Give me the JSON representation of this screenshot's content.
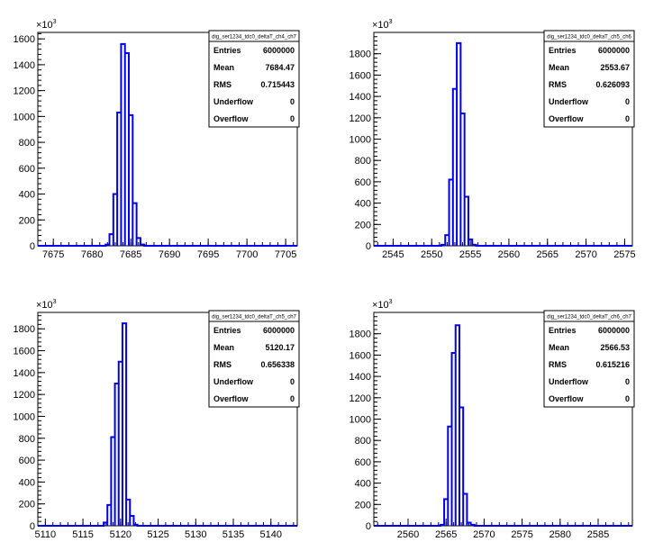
{
  "chart_data": [
    {
      "type": "histogram",
      "title": "dig_ser1234_tdc0_deltaT_ch4_ch7",
      "xlim": [
        7673,
        7706.5
      ],
      "ylim": [
        0,
        1650
      ],
      "x_ticks": [
        7675,
        7680,
        7685,
        7690,
        7695,
        7700,
        7705
      ],
      "y_ticks": [
        0,
        200,
        400,
        600,
        800,
        1000,
        1200,
        1400,
        1600
      ],
      "y_tick_labels": [
        "0",
        "200",
        "400",
        "600",
        "800",
        "1000",
        "1200",
        "1400",
        "1600"
      ],
      "y_exponent": "10",
      "y_exponent_power": "3",
      "bin_width": 0.5,
      "bins": [
        {
          "x": 7682.0,
          "y": 10
        },
        {
          "x": 7682.5,
          "y": 90
        },
        {
          "x": 7683.0,
          "y": 400
        },
        {
          "x": 7683.5,
          "y": 1030
        },
        {
          "x": 7684.0,
          "y": 1560
        },
        {
          "x": 7684.5,
          "y": 1490
        },
        {
          "x": 7685.0,
          "y": 1010
        },
        {
          "x": 7685.5,
          "y": 330
        },
        {
          "x": 7686.0,
          "y": 60
        },
        {
          "x": 7686.5,
          "y": 10
        }
      ],
      "stats": [
        {
          "key": "Entries",
          "value": "6000000"
        },
        {
          "key": "Mean",
          "value": "7684.47"
        },
        {
          "key": "RMS",
          "value": "0.715443"
        },
        {
          "key": "Underflow",
          "value": "0"
        },
        {
          "key": "Overflow",
          "value": "0"
        }
      ]
    },
    {
      "type": "histogram",
      "title": "dig_ser1234_tdc0_deltaT_ch5_ch6",
      "xlim": [
        2542.5,
        2576
      ],
      "ylim": [
        0,
        2000
      ],
      "x_ticks": [
        2545,
        2550,
        2555,
        2560,
        2565,
        2570,
        2575
      ],
      "y_ticks": [
        0,
        200,
        400,
        600,
        800,
        1000,
        1200,
        1400,
        1600,
        1800
      ],
      "y_tick_labels": [
        "0",
        "200",
        "400",
        "600",
        "800",
        "1000",
        "1200",
        "1400",
        "1600",
        "1800"
      ],
      "y_exponent": "10",
      "y_exponent_power": "3",
      "bin_width": 0.5,
      "bins": [
        {
          "x": 2551.5,
          "y": 10
        },
        {
          "x": 2552.0,
          "y": 100
        },
        {
          "x": 2552.5,
          "y": 620
        },
        {
          "x": 2553.0,
          "y": 1470
        },
        {
          "x": 2553.5,
          "y": 1900
        },
        {
          "x": 2554.0,
          "y": 1240
        },
        {
          "x": 2554.5,
          "y": 460
        },
        {
          "x": 2555.0,
          "y": 60
        },
        {
          "x": 2555.5,
          "y": 10
        }
      ],
      "stats": [
        {
          "key": "Entries",
          "value": "6000000"
        },
        {
          "key": "Mean",
          "value": "2553.67"
        },
        {
          "key": "RMS",
          "value": "0.626093"
        },
        {
          "key": "Underflow",
          "value": "0"
        },
        {
          "key": "Overflow",
          "value": "0"
        }
      ]
    },
    {
      "type": "histogram",
      "title": "dig_ser1234_tdc0_deltaT_ch5_ch7",
      "xlim": [
        5109,
        5143.5
      ],
      "ylim": [
        0,
        1950
      ],
      "x_ticks": [
        5110,
        5115,
        5120,
        5125,
        5130,
        5135,
        5140
      ],
      "y_ticks": [
        0,
        200,
        400,
        600,
        800,
        1000,
        1200,
        1400,
        1600,
        1800
      ],
      "y_tick_labels": [
        "0",
        "200",
        "400",
        "600",
        "800",
        "1000",
        "1200",
        "1400",
        "1600",
        "1800"
      ],
      "y_exponent": "10",
      "y_exponent_power": "3",
      "bin_width": 0.5,
      "bins": [
        {
          "x": 5118.0,
          "y": 30
        },
        {
          "x": 5118.5,
          "y": 190
        },
        {
          "x": 5119.0,
          "y": 810
        },
        {
          "x": 5119.5,
          "y": 1300
        },
        {
          "x": 5120.0,
          "y": 1500
        },
        {
          "x": 5120.5,
          "y": 1850
        },
        {
          "x": 5121.0,
          "y": 240
        },
        {
          "x": 5121.5,
          "y": 90
        },
        {
          "x": 5122.0,
          "y": 10
        }
      ],
      "stats": [
        {
          "key": "Entries",
          "value": "6000000"
        },
        {
          "key": "Mean",
          "value": "5120.17"
        },
        {
          "key": "RMS",
          "value": "0.656338"
        },
        {
          "key": "Underflow",
          "value": "0"
        },
        {
          "key": "Overflow",
          "value": "0"
        }
      ]
    },
    {
      "type": "histogram",
      "title": "dig_ser1234_tdc0_deltaT_ch6_ch7",
      "xlim": [
        2555.5,
        2589.5
      ],
      "ylim": [
        0,
        2000
      ],
      "x_ticks": [
        2560,
        2565,
        2570,
        2575,
        2580,
        2585
      ],
      "y_ticks": [
        0,
        200,
        400,
        600,
        800,
        1000,
        1200,
        1400,
        1600,
        1800
      ],
      "y_tick_labels": [
        "0",
        "200",
        "400",
        "600",
        "800",
        "1000",
        "1200",
        "1400",
        "1600",
        "1800"
      ],
      "y_exponent": "10",
      "y_exponent_power": "3",
      "bin_width": 0.5,
      "bins": [
        {
          "x": 2564.5,
          "y": 10
        },
        {
          "x": 2565.0,
          "y": 250
        },
        {
          "x": 2565.5,
          "y": 930
        },
        {
          "x": 2566.0,
          "y": 1620
        },
        {
          "x": 2566.5,
          "y": 1880
        },
        {
          "x": 2567.0,
          "y": 1110
        },
        {
          "x": 2567.5,
          "y": 300
        },
        {
          "x": 2568.0,
          "y": 30
        },
        {
          "x": 2568.5,
          "y": 10
        }
      ],
      "stats": [
        {
          "key": "Entries",
          "value": "6000000"
        },
        {
          "key": "Mean",
          "value": "2566.53"
        },
        {
          "key": "RMS",
          "value": "0.615216"
        },
        {
          "key": "Underflow",
          "value": "0"
        },
        {
          "key": "Overflow",
          "value": "0"
        }
      ]
    }
  ],
  "colors": {
    "histogram_line": "#0000ee",
    "axis": "#000000",
    "background": "#ffffff"
  }
}
